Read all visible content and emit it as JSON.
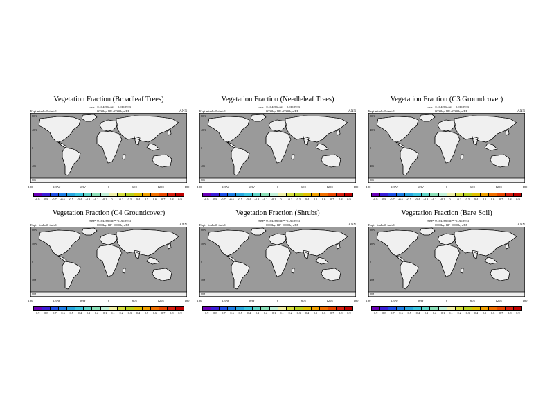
{
  "panels": [
    {
      "title": "Vegetation Fraction (Broadleaf Trees)",
      "rmse": "rmse= 0.104266 diff= -0.0118933",
      "expt": "Expt = tmlu41-tmlu1",
      "epoch": "0000kyr BP - 0000kyr BP",
      "season": "ANN",
      "scale": [
        "-0.9",
        "-0.8",
        "-0.7",
        "-0.6",
        "-0.5",
        "-0.4",
        "-0.3",
        "-0.2",
        "-0.1",
        "0.1",
        "0.2",
        "0.3",
        "0.4",
        "0.5",
        "0.6",
        "0.7",
        "0.8",
        "0.9"
      ],
      "map_icon": "broadleaf-trees-difference-map"
    },
    {
      "title": "Vegetation Fraction (Needleleaf Trees)",
      "rmse": "rmse= 0.104266 diff= -0.0118933",
      "expt": "Expt = tmlu41-tmlu1",
      "epoch": "0000kyr BP - 0000kyr BP",
      "season": "ANN",
      "scale": [
        "-0.9",
        "-0.8",
        "-0.7",
        "-0.6",
        "-0.5",
        "-0.4",
        "-0.3",
        "-0.2",
        "-0.1",
        "0.1",
        "0.2",
        "0.3",
        "0.4",
        "0.5",
        "0.6",
        "0.7",
        "0.8",
        "0.9"
      ],
      "map_icon": "needleleaf-trees-difference-map"
    },
    {
      "title": "Vegetation Fraction (C3 Groundcover)",
      "rmse": "rmse= 0.104266 diff= -0.0118933",
      "expt": "Expt = tmlu41-tmlu1",
      "epoch": "0000kyr BP - 0000kyr BP",
      "season": "ANN",
      "scale": [
        "-0.9",
        "-0.8",
        "-0.7",
        "-0.6",
        "-0.5",
        "-0.4",
        "-0.3",
        "-0.2",
        "-0.1",
        "0.1",
        "0.2",
        "0.3",
        "0.4",
        "0.5",
        "0.6",
        "0.7",
        "0.8",
        "0.9"
      ],
      "map_icon": "c3-groundcover-difference-map"
    },
    {
      "title": "Vegetation Fraction (C4 Groundcover)",
      "rmse": "rmse= 0.104266 diff= -0.0118933",
      "expt": "Expt = tmlu41-tmlu1",
      "epoch": "0000kyr BP - 0000kyr BP",
      "season": "ANN",
      "scale": [
        "-0.9",
        "-0.8",
        "-0.7",
        "-0.6",
        "-0.5",
        "-0.4",
        "-0.3",
        "-0.2",
        "-0.1",
        "0.1",
        "0.2",
        "0.3",
        "0.4",
        "0.5",
        "0.6",
        "0.7",
        "0.8",
        "0.9"
      ],
      "map_icon": "c4-groundcover-difference-map"
    },
    {
      "title": "Vegetation Fraction (Shrubs)",
      "rmse": "rmse= 0.104266 diff= -0.0118933",
      "expt": "Expt = tmlu41-tmlu1",
      "epoch": "0000kyr BP - 0000kyr BP",
      "season": "ANN",
      "scale": [
        "-0.9",
        "-0.8",
        "-0.7",
        "-0.6",
        "-0.5",
        "-0.4",
        "-0.3",
        "-0.2",
        "-0.1",
        "0.1",
        "0.2",
        "0.3",
        "0.4",
        "0.5",
        "0.6",
        "0.7",
        "0.8",
        "0.9"
      ],
      "map_icon": "shrubs-difference-map"
    },
    {
      "title": "Vegetation Fraction (Bare Soil)",
      "rmse": "rmse= 0.104266 diff= -0.0118933",
      "expt": "Expt = tmlu41-tmlu1",
      "epoch": "0000kyr BP - 0000kyr BP",
      "season": "ANN",
      "scale": [
        "-0.9",
        "-0.8",
        "-0.7",
        "-0.6",
        "-0.5",
        "-0.4",
        "-0.3",
        "-0.2",
        "-0.1",
        "0.1",
        "0.2",
        "0.3",
        "0.4",
        "0.5",
        "0.6",
        "0.7",
        "0.8",
        "0.9"
      ],
      "map_icon": "bare-soil-difference-map"
    }
  ],
  "x_ticks": [
    "180",
    "120W",
    "60W",
    "0",
    "60E",
    "120E",
    "180"
  ],
  "y_ticks": [
    "80N",
    "40N",
    "0",
    "40S",
    "80S"
  ],
  "colors": {
    "ocean": "#9a9a9a",
    "land": "#f0f0f0",
    "scale": [
      "#6a00b8",
      "#3b1fd8",
      "#1f4fe6",
      "#1f7ee6",
      "#2aa6e0",
      "#3cc6e0",
      "#5fd6c8",
      "#8ae0b8",
      "#c0f0d8",
      "#f0f0a8",
      "#d8e040",
      "#b8d020",
      "#e0c000",
      "#f0a000",
      "#f07000",
      "#e84800",
      "#d82010",
      "#c00000"
    ]
  }
}
